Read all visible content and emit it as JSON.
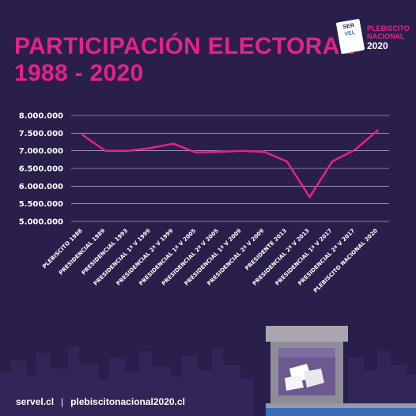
{
  "header": {
    "title_line1": "PARTICIPACIÓN ELECTORAL",
    "title_line2": "1988 - 2020"
  },
  "logo": {
    "servel_1": "SER",
    "servel_2": "VEL",
    "servel_3": "",
    "line1": "PLEBISCITO",
    "line2": "NACIONAL",
    "line3": "2020"
  },
  "footer": {
    "link1": "servel.cl",
    "separator": "|",
    "link2": "plebiscitonacional2020.cl"
  },
  "colors": {
    "background": "#2a1f4a",
    "accent": "#e6208d",
    "axis_text": "#ffffff"
  },
  "chart_data": {
    "type": "line",
    "categories": [
      "PLEBISCITO 1988",
      "PRESIDENCIAL 1989",
      "PRESIDENCIAL 1993",
      "PRESIDENCIAL 1ª V 1999",
      "PRESIDENCIAL 2ª V 1999",
      "PRESIDENCIAL 1ª V 2005",
      "PRESIDENCIAL 2ª V 2005",
      "PRESIDENCIAL 1ª V 2009",
      "PRESIDENCIAL 2ª V 2009",
      "PRESIDENTE 2013",
      "PRESIDENCIAL 2ª V 2013",
      "PRESIDENCIAL 1ª V 2017",
      "PRESIDENCIAL 2ª V 2017",
      "PLEBISCITO NACIONAL 2020"
    ],
    "values": [
      7450000,
      7000000,
      7000000,
      7080000,
      7200000,
      6950000,
      6970000,
      7000000,
      6970000,
      6700000,
      5690000,
      6700000,
      7030000,
      7580000
    ],
    "yticks": [
      5000000,
      5500000,
      6000000,
      6500000,
      7000000,
      7500000,
      8000000
    ],
    "ytick_labels": [
      "5.000.000",
      "5.500.000",
      "6.000.000",
      "6.500.000",
      "7.000.000",
      "7.500.000",
      "8.000.000"
    ],
    "ylim": [
      5000000,
      8000000
    ],
    "title": "",
    "xlabel": "",
    "ylabel": "",
    "grid": true
  }
}
